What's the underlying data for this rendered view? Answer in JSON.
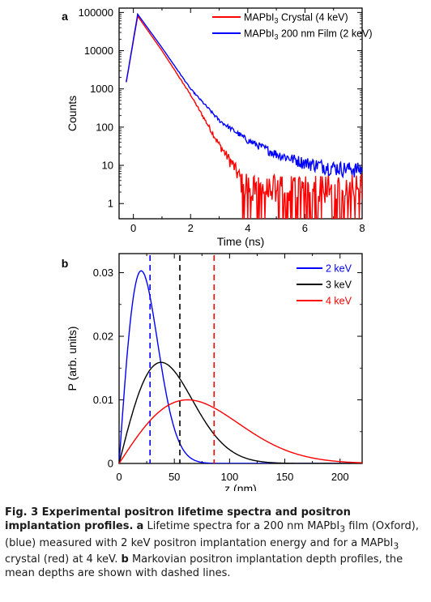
{
  "chart_data": [
    {
      "panel": "a",
      "type": "line",
      "xlabel": "Time (ns)",
      "ylabel": "Counts",
      "xlim": [
        -0.5,
        8
      ],
      "ylim": [
        0.4,
        130000
      ],
      "yscale": "log",
      "xticks": [
        0,
        2,
        4,
        6,
        8
      ],
      "yticks": [
        1,
        10,
        100,
        1000,
        10000,
        100000
      ],
      "ytick_labels": [
        "1",
        "10",
        "100",
        "1000",
        "10000",
        "100000"
      ],
      "legend_position": "top-right",
      "series": [
        {
          "name_parts": [
            "MAPbI",
            "3",
            " Crystal (4 keV)"
          ],
          "color": "#ff0000",
          "peak": 80000,
          "x_peak": 0.15,
          "tail_note": "noisy near 1 count beyond 4 ns",
          "x": [
            -0.25,
            0.15,
            1.0,
            2.0,
            3.0,
            3.5,
            4.0,
            5.0,
            6.0,
            7.0,
            8.0
          ],
          "y": [
            1500,
            80000,
            10000,
            700,
            35,
            10,
            2,
            1.5,
            1.5,
            1.5,
            1.5
          ]
        },
        {
          "name_parts": [
            "MAPbI",
            "3",
            " 200 nm Film (2 keV)"
          ],
          "color": "#0000ff",
          "peak": 90000,
          "x_peak": 0.15,
          "x": [
            -0.25,
            0.15,
            1.0,
            2.0,
            3.0,
            4.0,
            5.0,
            6.0,
            7.0,
            8.0
          ],
          "y": [
            1500,
            90000,
            12000,
            1000,
            150,
            45,
            20,
            12,
            9,
            8
          ]
        }
      ]
    },
    {
      "panel": "b",
      "type": "line",
      "xlabel": "z (nm)",
      "ylabel": "P (arb. units)",
      "xlim": [
        0,
        220
      ],
      "ylim": [
        0,
        0.033
      ],
      "xticks": [
        0,
        50,
        100,
        150,
        200
      ],
      "yticks": [
        0,
        0.01,
        0.02,
        0.03
      ],
      "ytick_labels": [
        "0",
        "0.01",
        "0.02",
        "0.03"
      ],
      "legend_position": "top-right",
      "series": [
        {
          "name": "2 keV",
          "color": "#0000ff",
          "peak_z": 20,
          "peak_p": 0.0303,
          "mean_z": 28
        },
        {
          "name": "3 keV",
          "color": "#000000",
          "peak_z": 38,
          "peak_p": 0.0159,
          "mean_z": 55
        },
        {
          "name": "4 keV",
          "color": "#ff0000",
          "peak_z": 62,
          "peak_p": 0.01,
          "mean_z": 86
        }
      ]
    }
  ],
  "caption": {
    "title": "Fig. 3 Experimental positron lifetime spectra and positron implantation profiles.",
    "a_label": "a",
    "a_text_1": "Lifetime spectra for a 200 nm MAPbI",
    "a_sub_1": "3",
    "a_text_2": " film (Oxford), (blue) measured with 2 keV positron implantation energy and for a MAPbI",
    "a_sub_2": "3",
    "a_text_3": " crystal (red) at 4 keV.",
    "b_label": "b",
    "b_text": "Markovian positron implantation depth profiles, the mean depths are shown with dashed lines."
  }
}
